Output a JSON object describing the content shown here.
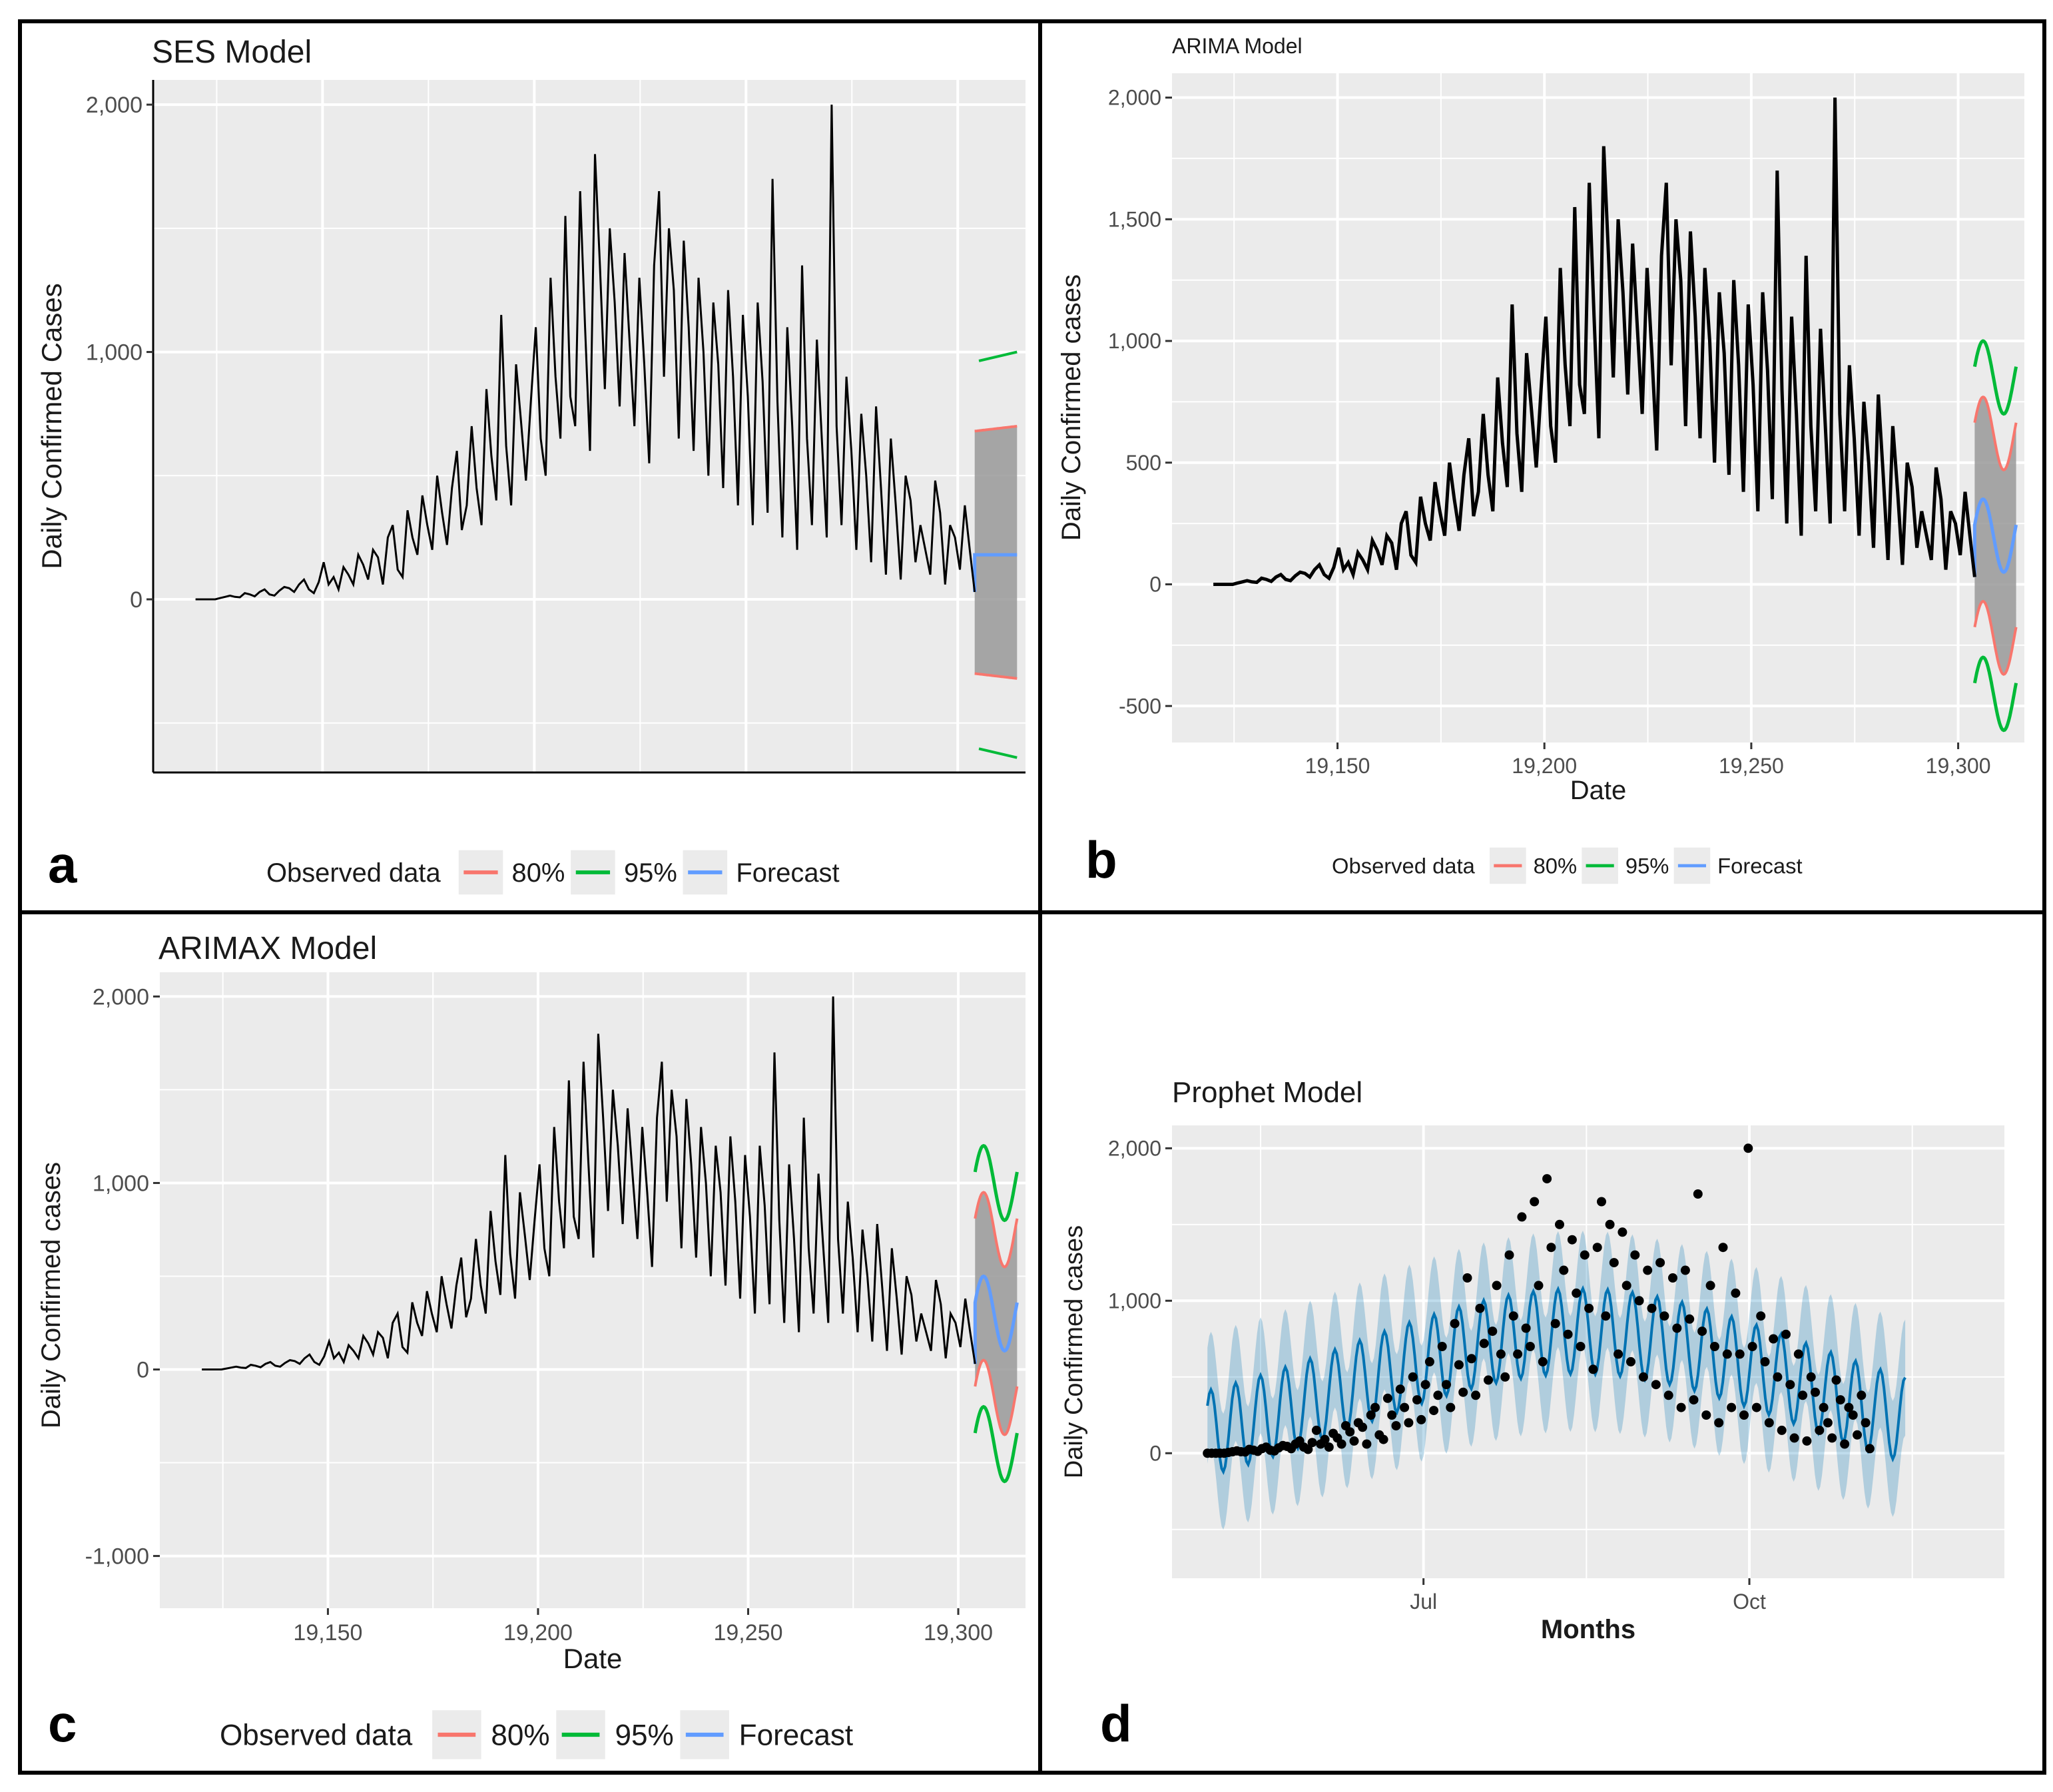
{
  "figure": {
    "legend_labels": [
      "Observed data",
      "80%",
      "95%",
      "Forecast"
    ],
    "legend_colors": {
      "observed": "#000000",
      "pi80": "#F8766D",
      "pi95": "#00BA38",
      "forecast": "#619CFF"
    }
  },
  "chart_data": [
    {
      "panel": "a",
      "type": "line",
      "title": "SES Model",
      "xlabel": "",
      "ylabel": "Daily Confirmed Cases",
      "xlim": [
        19110,
        19316
      ],
      "ylim": [
        -700,
        2100
      ],
      "yticks": [
        0,
        1000,
        2000
      ],
      "ytick_labels": [
        "0",
        "1,000",
        "2,000"
      ],
      "xticks": [],
      "xtick_labels": [],
      "forecast": {
        "type": "ses",
        "x_start": 19304,
        "x_end": 19314,
        "level": 180,
        "pi80": [
          -300,
          680
        ],
        "pi95": [
          -600,
          960
        ]
      }
    },
    {
      "panel": "b",
      "type": "line",
      "title": "ARIMA Model",
      "xlabel": "Date",
      "ylabel": "Daily Confirmed cases",
      "xlim": [
        19110,
        19316
      ],
      "ylim": [
        -650,
        2100
      ],
      "yticks": [
        -500,
        0,
        500,
        1000,
        1500,
        2000
      ],
      "ytick_labels": [
        "-500",
        "0",
        "500",
        "1,000",
        "1,500",
        "2,000"
      ],
      "xticks": [
        19150,
        19200,
        19250,
        19300
      ],
      "xtick_labels": [
        "19,150",
        "19,200",
        "19,250",
        "19,300"
      ],
      "forecast": {
        "type": "wave",
        "x_start": 19304,
        "x_end": 19314,
        "center": 200,
        "amp": 150,
        "pi80_half": 420,
        "pi95_half": 650
      }
    },
    {
      "panel": "c",
      "type": "line",
      "title": "ARIMAX Model",
      "xlabel": "Date",
      "ylabel": "Daily Confirmed cases",
      "xlim": [
        19110,
        19316
      ],
      "ylim": [
        -1280,
        2130
      ],
      "yticks": [
        -1000,
        0,
        1000,
        2000
      ],
      "ytick_labels": [
        "-1,000",
        "0",
        "1,000",
        "2,000"
      ],
      "xticks": [
        19150,
        19200,
        19250,
        19300
      ],
      "xtick_labels": [
        "19,150",
        "19,200",
        "19,250",
        "19,300"
      ],
      "forecast": {
        "type": "wave",
        "x_start": 19304,
        "x_end": 19314,
        "center": 300,
        "amp": 200,
        "pi80_half": 450,
        "pi95_half": 700
      }
    },
    {
      "panel": "d",
      "type": "scatter",
      "title": "Prophet Model",
      "xlabel": "Months",
      "ylabel": "Daily Confirmed cases",
      "xlim": [
        -10,
        225
      ],
      "ylim": [
        -820,
        2150
      ],
      "yticks": [
        0,
        1000,
        2000
      ],
      "ytick_labels": [
        "0",
        "1,000",
        "2,000"
      ],
      "xticks": [
        61,
        153
      ],
      "xtick_labels": [
        "Jul",
        "Oct"
      ],
      "observed_x_range": [
        0,
        187
      ],
      "fit_x_range": [
        0,
        197
      ]
    }
  ],
  "observed_series": {
    "x_start": 19120,
    "x_end": 19304,
    "description_free_values": [
      0,
      0,
      0,
      0,
      0,
      5,
      10,
      15,
      10,
      8,
      25,
      20,
      12,
      30,
      40,
      20,
      15,
      35,
      50,
      45,
      30,
      60,
      80,
      40,
      25,
      70,
      150,
      60,
      90,
      40,
      130,
      100,
      60,
      180,
      140,
      80,
      200,
      170,
      60,
      250,
      300,
      120,
      90,
      360,
      250,
      180,
      420,
      300,
      200,
      500,
      350,
      220,
      450,
      600,
      280,
      380,
      700,
      450,
      300,
      850,
      580,
      400,
      1150,
      620,
      380,
      950,
      720,
      480,
      800,
      1100,
      650,
      500,
      1300,
      900,
      650,
      1550,
      820,
      700,
      1650,
      1100,
      600,
      1800,
      1350,
      850,
      1500,
      1200,
      780,
      1400,
      1050,
      700,
      1300,
      950,
      550,
      1350,
      1650,
      900,
      1500,
      1250,
      650,
      1450,
      1100,
      600,
      1300,
      1000,
      500,
      1200,
      950,
      450,
      1250,
      900,
      380,
      1150,
      820,
      300,
      1200,
      880,
      350,
      1700,
      800,
      250,
      1100,
      700,
      200,
      1350,
      650,
      300,
      1050,
      650,
      250,
      2000,
      700,
      300,
      900,
      600,
      200,
      750,
      500,
      150,
      780,
      450,
      100,
      650,
      380,
      80,
      500,
      400,
      150,
      300,
      200,
      100,
      480,
      350,
      60,
      300,
      250,
      120,
      380,
      200,
      30
    ]
  }
}
